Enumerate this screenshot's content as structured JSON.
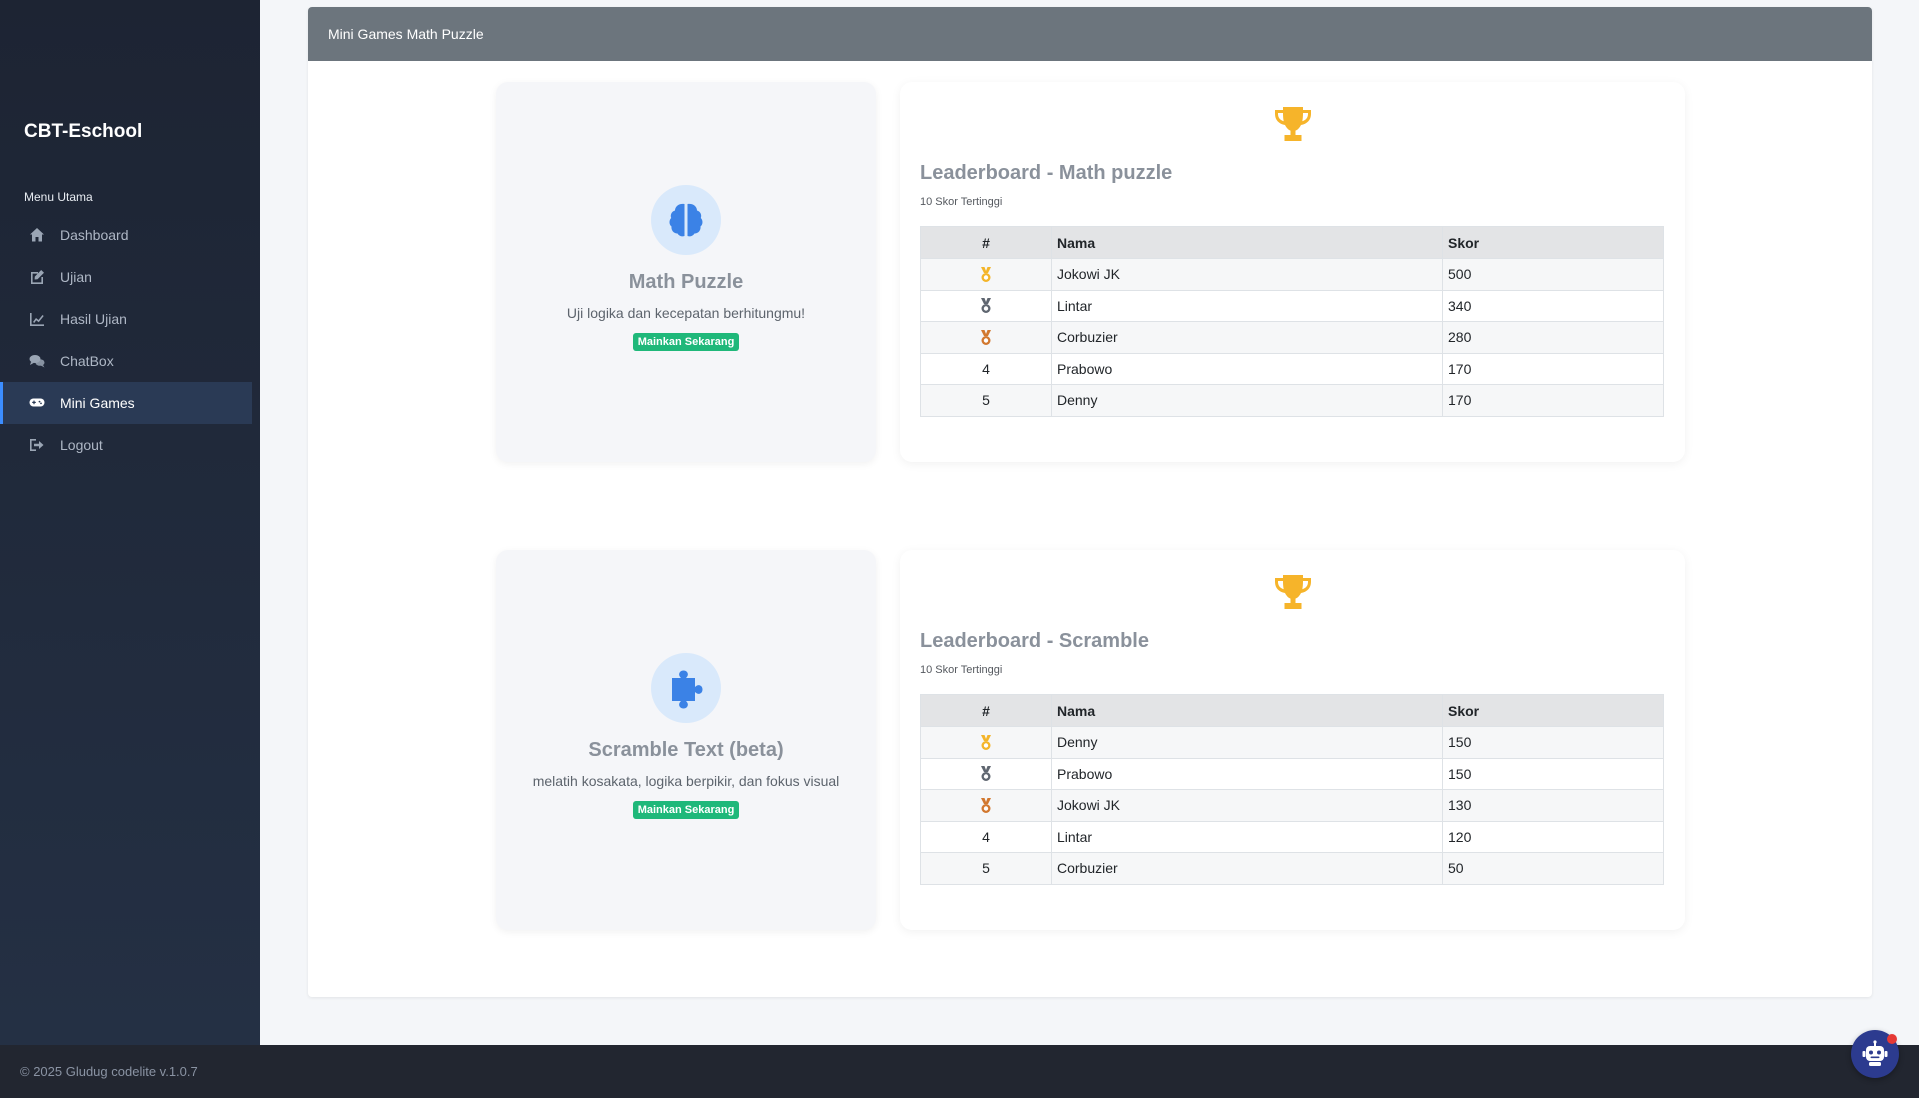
{
  "sidebar": {
    "brand": "CBT-Eschool",
    "menu_heading": "Menu Utama",
    "items": [
      {
        "label": "Dashboard",
        "icon": "home-icon"
      },
      {
        "label": "Ujian",
        "icon": "edit-icon"
      },
      {
        "label": "Hasil Ujian",
        "icon": "chart-line-icon"
      },
      {
        "label": "ChatBox",
        "icon": "comments-icon"
      },
      {
        "label": "Mini Games",
        "icon": "gamepad-icon",
        "active": true
      },
      {
        "label": "Logout",
        "icon": "sign-out-icon"
      }
    ]
  },
  "main": {
    "header_title": "Mini Games Math Puzzle",
    "games": [
      {
        "title": "Math Puzzle",
        "description": "Uji logika dan kecepatan berhitungmu!",
        "button": "Mainkan Sekarang",
        "icon": "brain-icon",
        "leaderboard": {
          "title": "Leaderboard - Math puzzle",
          "subtitle": "10 Skor Tertinggi",
          "columns": [
            "#",
            "Nama",
            "Skor"
          ],
          "rows": [
            {
              "rank": "1",
              "medal": "gold",
              "name": "Jokowi JK",
              "score": "500"
            },
            {
              "rank": "2",
              "medal": "silver",
              "name": "Lintar",
              "score": "340"
            },
            {
              "rank": "3",
              "medal": "bronze",
              "name": "Corbuzier",
              "score": "280"
            },
            {
              "rank": "4",
              "medal": "",
              "name": "Prabowo",
              "score": "170"
            },
            {
              "rank": "5",
              "medal": "",
              "name": "Denny",
              "score": "170"
            }
          ]
        }
      },
      {
        "title": "Scramble Text (beta)",
        "description": "melatih kosakata, logika berpikir, dan fokus visual",
        "button": "Mainkan Sekarang",
        "icon": "puzzle-piece-icon",
        "leaderboard": {
          "title": "Leaderboard - Scramble",
          "subtitle": "10 Skor Tertinggi",
          "columns": [
            "#",
            "Nama",
            "Skor"
          ],
          "rows": [
            {
              "rank": "1",
              "medal": "gold",
              "name": "Denny",
              "score": "150"
            },
            {
              "rank": "2",
              "medal": "silver",
              "name": "Prabowo",
              "score": "150"
            },
            {
              "rank": "3",
              "medal": "bronze",
              "name": "Jokowi JK",
              "score": "130"
            },
            {
              "rank": "4",
              "medal": "",
              "name": "Lintar",
              "score": "120"
            },
            {
              "rank": "5",
              "medal": "",
              "name": "Corbuzier",
              "score": "50"
            }
          ]
        }
      }
    ]
  },
  "footer": {
    "text": "© 2025 Gludug codelite v.1.0.7"
  },
  "colors": {
    "gold": "#f4b52a",
    "silver": "#5f6670",
    "bronze": "#d2782f",
    "accent": "#3c8dff",
    "play_button": "#1fb87a"
  }
}
